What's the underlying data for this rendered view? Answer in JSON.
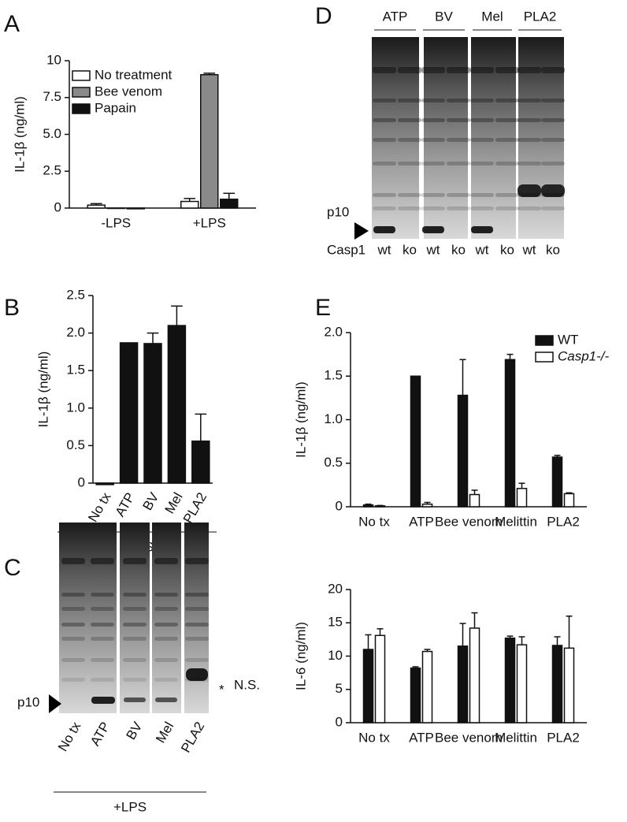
{
  "chart_data": [
    {
      "type": "bar",
      "panel": "A",
      "ylabel": "IL-1β (ng/ml)",
      "categories": [
        "-LPS",
        "+LPS"
      ],
      "ylim": [
        0,
        10
      ],
      "yticks": [
        0,
        {
          "value": 2.5,
          "label": "2.5"
        },
        {
          "value": 5,
          "label": "5.0"
        },
        {
          "value": 7.5,
          "label": "7.5"
        },
        10
      ],
      "legend": "upper left",
      "series": [
        {
          "name": "No treatment",
          "color": "#ffffff",
          "values": [
            0.2,
            0.45
          ],
          "errors": [
            0.1,
            0.2
          ]
        },
        {
          "name": "Bee venom",
          "color": "#8a8a8a",
          "values": [
            0,
            9.05
          ],
          "errors": [
            0,
            0.1
          ]
        },
        {
          "name": "Papain",
          "color": "#111111",
          "values": [
            -0.05,
            0.6
          ],
          "errors": [
            0,
            0.4
          ]
        }
      ]
    },
    {
      "type": "bar",
      "panel": "B",
      "ylabel": "IL-1β (ng/ml)",
      "xlabel": "+LPS",
      "categories": [
        "No tx",
        "ATP",
        "BV",
        "Mel",
        "PLA2"
      ],
      "ylim": [
        0,
        2.5
      ],
      "yticks": [
        0,
        {
          "value": 0.5,
          "label": "0.5"
        },
        {
          "value": 1,
          "label": "1.0"
        },
        {
          "value": 1.5,
          "label": "1.5"
        },
        {
          "value": 2,
          "label": "2.0"
        },
        {
          "value": 2.5,
          "label": "2.5"
        }
      ],
      "series": [
        {
          "color": "#111111",
          "values": [
            -0.02,
            1.87,
            1.86,
            2.1,
            0.56
          ],
          "errors": [
            0,
            0,
            0.14,
            0.26,
            0.36
          ]
        }
      ]
    },
    {
      "type": "bar",
      "panel": "E",
      "ylabel": "IL-1β (ng/ml)",
      "categories": [
        "No tx",
        "ATP",
        "Bee venom",
        "Melittin",
        "PLA2"
      ],
      "ylim": [
        0,
        2
      ],
      "yticks": [
        0,
        {
          "value": 0.5,
          "label": "0.5"
        },
        {
          "value": 1,
          "label": "1.0"
        },
        {
          "value": 1.5,
          "label": "1.5"
        },
        {
          "value": 2,
          "label": "2.0"
        }
      ],
      "legend": "upper right",
      "series": [
        {
          "name": "WT",
          "color": "#111111",
          "values": [
            0.02,
            1.5,
            1.28,
            1.69,
            0.57
          ],
          "errors": [
            0.01,
            0,
            0.41,
            0.06,
            0.02
          ]
        },
        {
          "name": "Casp1-/-",
          "color": "#ffffff",
          "values": [
            0.01,
            0.03,
            0.14,
            0.21,
            0.15
          ],
          "errors": [
            0.005,
            0.02,
            0.05,
            0.06,
            0.01
          ]
        }
      ]
    },
    {
      "type": "bar",
      "ylabel": "IL-6 (ng/ml)",
      "categories": [
        "No tx",
        "ATP",
        "Bee venom",
        "Melittin",
        "PLA2"
      ],
      "ylim": [
        0,
        20
      ],
      "yticks": [
        0,
        5,
        10,
        15,
        20
      ],
      "series": [
        {
          "color": "#111111",
          "values": [
            11,
            8.2,
            11.5,
            12.7,
            11.6
          ],
          "errors": [
            2.2,
            0.2,
            3.4,
            0.3,
            1.3
          ]
        },
        {
          "color": "#ffffff",
          "values": [
            13.1,
            10.7,
            14.2,
            11.7,
            11.2
          ],
          "errors": [
            1,
            0.3,
            2.3,
            1.2,
            4.8
          ]
        }
      ]
    }
  ],
  "blots": [
    {
      "panel": "C",
      "lanes": [
        "No tx",
        "ATP",
        "BV",
        "Mel",
        "PLA2"
      ],
      "marker": "p10",
      "band_mark": "*",
      "band_note": "N.S.",
      "group_label": "+LPS"
    },
    {
      "panel": "D",
      "groups": [
        "ATP",
        "BV",
        "Mel",
        "PLA2"
      ],
      "lanes": [
        "wt",
        "ko",
        "wt",
        "ko",
        "wt",
        "ko",
        "wt",
        "ko"
      ],
      "row_label": "Casp1",
      "marker": "p10"
    }
  ]
}
